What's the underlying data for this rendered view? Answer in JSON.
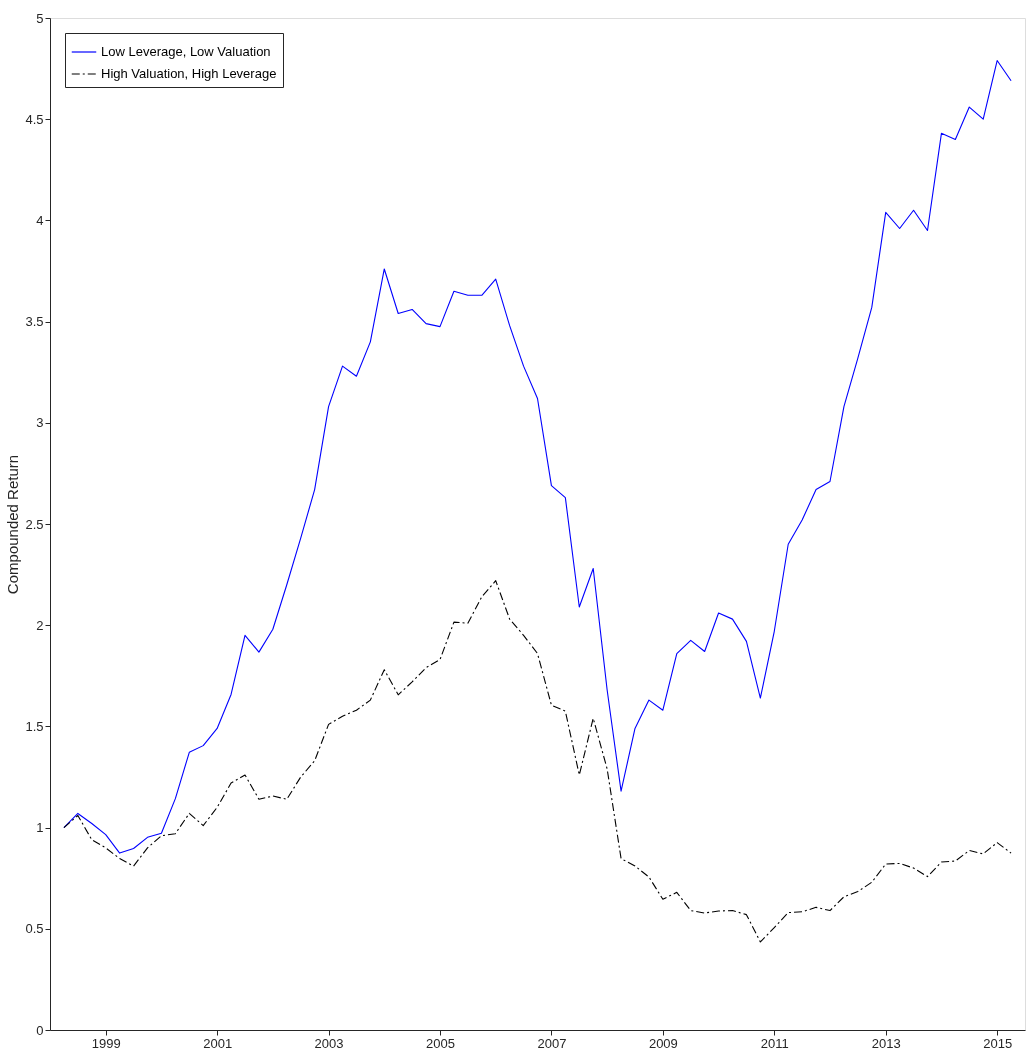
{
  "chart_data": {
    "type": "line",
    "ylabel": "Compounded Return",
    "x": [
      1998.25,
      1998.5,
      1998.75,
      1999,
      1999.25,
      1999.5,
      1999.75,
      2000,
      2000.25,
      2000.5,
      2000.75,
      2001,
      2001.25,
      2001.5,
      2001.75,
      2002,
      2002.25,
      2002.5,
      2002.75,
      2003,
      2003.25,
      2003.5,
      2003.75,
      2004,
      2004.25,
      2004.5,
      2004.75,
      2005,
      2005.25,
      2005.5,
      2005.75,
      2006,
      2006.25,
      2006.5,
      2006.75,
      2007,
      2007.25,
      2007.5,
      2007.75,
      2008,
      2008.25,
      2008.5,
      2008.75,
      2009,
      2009.25,
      2009.5,
      2009.75,
      2010,
      2010.25,
      2010.5,
      2010.75,
      2011,
      2011.25,
      2011.5,
      2011.75,
      2012,
      2012.25,
      2012.5,
      2012.75,
      2013,
      2013.25,
      2013.5,
      2013.75,
      2014,
      2014.25,
      2014.5,
      2014.75,
      2015,
      2015.25
    ],
    "series": [
      {
        "name": "Low Leverage, Low Valuation",
        "color": "#0000ff",
        "line_style": "solid",
        "values": [
          1.0,
          1.07,
          1.02,
          0.965,
          0.874,
          0.897,
          0.952,
          0.972,
          1.143,
          1.372,
          1.405,
          1.49,
          1.658,
          1.95,
          1.867,
          1.98,
          2.2,
          2.43,
          2.67,
          3.08,
          3.28,
          3.23,
          3.4,
          3.76,
          3.54,
          3.56,
          3.49,
          3.475,
          3.65,
          3.63,
          3.63,
          3.71,
          3.48,
          3.28,
          3.12,
          2.69,
          2.63,
          2.09,
          2.28,
          1.68,
          1.18,
          1.49,
          1.63,
          1.58,
          1.86,
          1.925,
          1.87,
          2.06,
          2.03,
          1.92,
          1.64,
          1.97,
          2.4,
          2.52,
          2.67,
          2.71,
          3.08,
          3.32,
          3.57,
          4.04,
          3.96,
          4.05,
          3.95,
          4.43,
          4.4,
          4.56,
          4.5,
          4.79,
          4.69
        ]
      },
      {
        "name": "High Valuation, High Leverage",
        "color": "#000000",
        "line_style": "dashdot",
        "values": [
          1.0,
          1.06,
          0.94,
          0.9,
          0.847,
          0.81,
          0.9,
          0.96,
          0.97,
          1.07,
          1.01,
          1.1,
          1.22,
          1.26,
          1.14,
          1.156,
          1.14,
          1.25,
          1.33,
          1.51,
          1.55,
          1.58,
          1.63,
          1.78,
          1.656,
          1.72,
          1.79,
          1.83,
          2.015,
          2.01,
          2.14,
          2.22,
          2.03,
          1.95,
          1.86,
          1.605,
          1.575,
          1.26,
          1.54,
          1.29,
          0.847,
          0.81,
          0.756,
          0.646,
          0.68,
          0.59,
          0.578,
          0.588,
          0.59,
          0.57,
          0.435,
          0.506,
          0.58,
          0.584,
          0.606,
          0.59,
          0.658,
          0.684,
          0.73,
          0.82,
          0.823,
          0.8,
          0.758,
          0.83,
          0.835,
          0.887,
          0.87,
          0.926,
          0.874
        ]
      }
    ],
    "xlim": [
      1998,
      2015.5
    ],
    "xticks": [
      1999,
      2001,
      2003,
      2005,
      2007,
      2009,
      2011,
      2013,
      2015
    ],
    "ylim": [
      0,
      5
    ],
    "yticks": [
      0,
      0.5,
      1,
      1.5,
      2,
      2.5,
      3,
      3.5,
      4,
      4.5,
      5
    ],
    "grid": false,
    "legend": "top left"
  }
}
